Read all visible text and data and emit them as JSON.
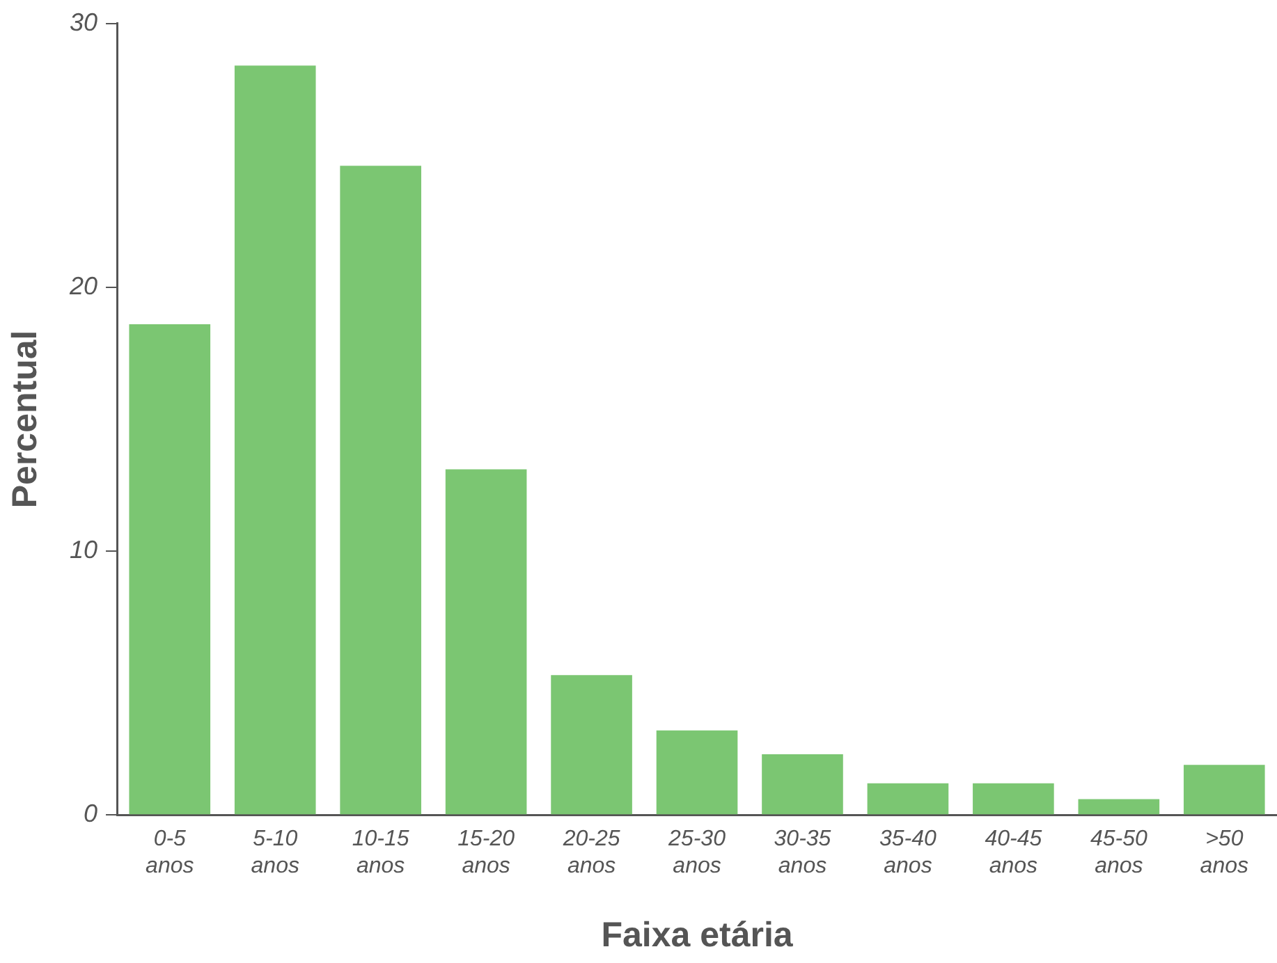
{
  "chart_data": {
    "type": "bar",
    "xlabel": "Faixa etária",
    "ylabel": "Percentual",
    "categories": [
      "0-5 anos",
      "5-10 anos",
      "10-15 anos",
      "15-20 anos",
      "20-25 anos",
      "25-30 anos",
      "30-35 anos",
      "35-40 anos",
      "40-45 anos",
      "45-50 anos",
      ">50 anos"
    ],
    "values": [
      18.6,
      28.4,
      24.6,
      13.1,
      5.3,
      3.2,
      2.3,
      1.2,
      1.2,
      0.6,
      1.9
    ],
    "color": "#7bc672",
    "ylim": [
      0,
      30
    ],
    "yticks": [
      0,
      10,
      20,
      30
    ],
    "grid": false,
    "legend": false
  }
}
